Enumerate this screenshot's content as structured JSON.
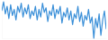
{
  "chart_data": {
    "type": "line",
    "x": [
      0,
      1,
      2,
      3,
      4,
      5,
      6,
      7,
      8,
      9,
      10,
      11,
      12,
      13,
      14,
      15,
      16,
      17,
      18,
      19,
      20,
      21,
      22,
      23,
      24,
      25,
      26,
      27,
      28,
      29,
      30,
      31,
      32,
      33,
      34,
      35,
      36,
      37,
      38,
      39,
      40,
      41,
      42,
      43,
      44,
      45,
      46,
      47,
      48,
      49,
      50,
      51,
      52,
      53,
      54,
      55,
      56,
      57,
      58,
      59
    ],
    "values": [
      30,
      36,
      28,
      33,
      25,
      34,
      27,
      31,
      24,
      33,
      29,
      35,
      26,
      32,
      28,
      34,
      25,
      30,
      27,
      33,
      24,
      31,
      26,
      35,
      29,
      32,
      23,
      30,
      27,
      34,
      25,
      31,
      28,
      33,
      22,
      29,
      26,
      32,
      24,
      30,
      21,
      28,
      25,
      33,
      23,
      29,
      20,
      27,
      24,
      31,
      22,
      26,
      12,
      25,
      19,
      28,
      14,
      24,
      30,
      18
    ],
    "xlim": [
      0,
      59
    ],
    "ylim": [
      12,
      36
    ],
    "color": "#3a8fd8",
    "grid": false,
    "tick_labels": false
  }
}
